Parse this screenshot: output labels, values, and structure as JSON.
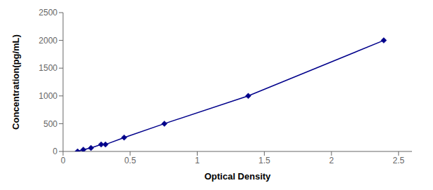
{
  "chart_data": {
    "type": "line",
    "xlabel": "Optical Density",
    "ylabel": "Concentration(pg/mL)",
    "x": [
      0.108,
      0.151,
      0.208,
      0.284,
      0.316,
      0.455,
      0.755,
      1.38,
      2.39
    ],
    "values": [
      0,
      31.25,
      62.5,
      125,
      125,
      250,
      500,
      1000,
      2000
    ],
    "color": "#00008B",
    "marker": "diamond",
    "xlim": [
      0.0,
      2.6
    ],
    "ylim": [
      0,
      2500
    ],
    "xticks": [
      0,
      0.5,
      1.0,
      1.5,
      2.0,
      2.5
    ],
    "yticks": [
      0,
      500,
      1000,
      1500,
      2000,
      2500
    ],
    "grid": false
  }
}
